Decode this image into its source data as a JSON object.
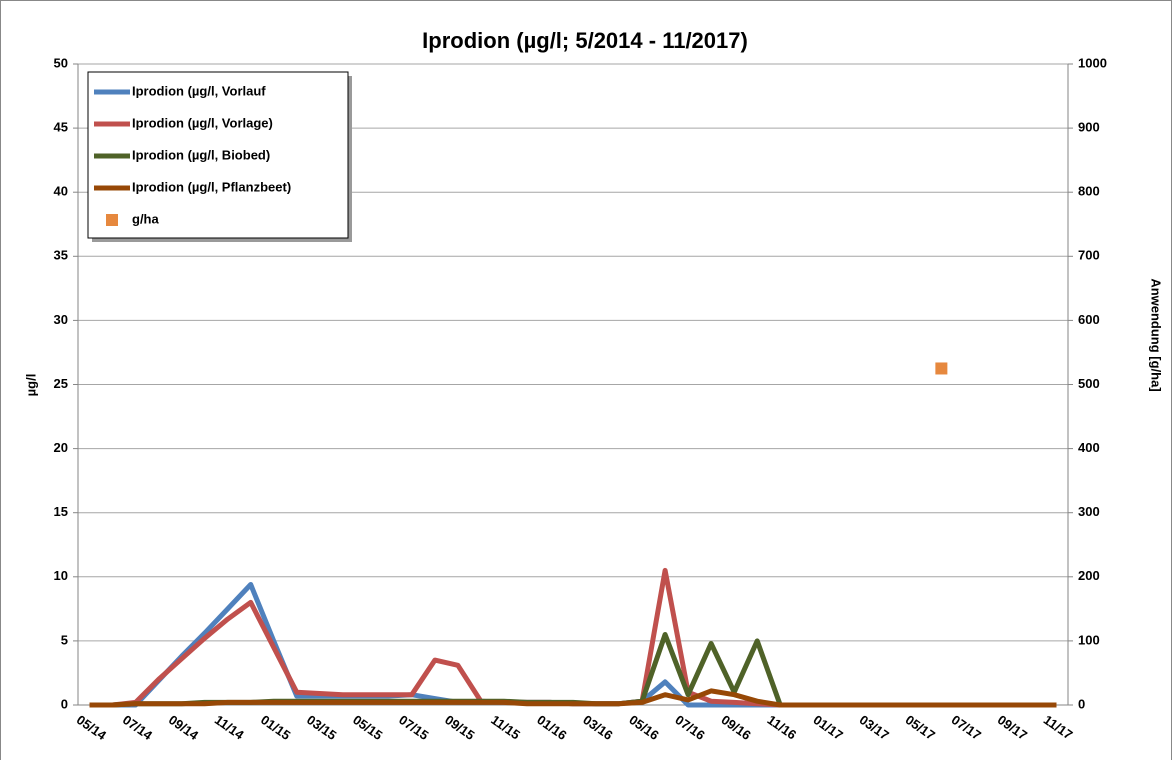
{
  "chart_data": {
    "type": "line",
    "title": "Iprodion (µg/l; 5/2014 - 11/2017)",
    "y_label": "µg/l",
    "y2_label": "Anwendung [g/ha]",
    "categories": [
      "05/14",
      null,
      "07/14",
      null,
      "09/14",
      null,
      "11/14",
      null,
      "01/15",
      null,
      "03/15",
      null,
      "05/15",
      null,
      "07/15",
      null,
      "09/15",
      null,
      "11/15",
      null,
      "01/16",
      null,
      "03/16",
      null,
      "05/16",
      null,
      "07/16",
      null,
      "09/16",
      null,
      "11/16",
      null,
      "01/17",
      null,
      "03/17",
      null,
      "05/17",
      null,
      "07/17",
      null,
      "09/17",
      null,
      "11/17"
    ],
    "ylim": [
      0,
      50
    ],
    "yticks": [
      0,
      5,
      10,
      15,
      20,
      25,
      30,
      35,
      40,
      45,
      50
    ],
    "y2lim": [
      0,
      1000
    ],
    "y2ticks": [
      0,
      100,
      200,
      300,
      400,
      500,
      600,
      700,
      800,
      900,
      1000
    ],
    "grid": true,
    "legend": "top-left",
    "series": [
      {
        "name": "Iprodion (µg/l, Vorlauf",
        "color": "#4f81bd",
        "values": [
          0,
          0,
          0,
          1.9,
          3.8,
          5.6,
          7.5,
          9.4,
          5,
          0.7,
          0.7,
          0.7,
          0.7,
          0.7,
          0.8,
          0.5,
          0.2,
          0.2,
          0.2,
          0.2,
          0.2,
          0.1,
          0.1,
          0.1,
          0.3,
          1.8,
          0,
          0,
          0,
          0,
          0,
          0,
          0,
          0,
          0,
          0,
          0,
          0,
          0,
          0,
          0,
          0,
          0
        ]
      },
      {
        "name": "Iprodion (µg/l, Vorlage)",
        "color": "#c0504d",
        "values": [
          0,
          0,
          0.2,
          2,
          3.6,
          5.2,
          6.7,
          8,
          4.5,
          1,
          0.9,
          0.8,
          0.8,
          0.8,
          0.8,
          3.5,
          3.1,
          0.3,
          0.2,
          0.2,
          0.2,
          0.1,
          0.1,
          0.1,
          0.3,
          10.5,
          1,
          0.3,
          0.2,
          0.1,
          0,
          0,
          0,
          0,
          0,
          0,
          0,
          0,
          0,
          0,
          0,
          0,
          0
        ]
      },
      {
        "name": "Iprodion (µg/l, Biobed)",
        "color": "#4f6228",
        "values": [
          0,
          0,
          0.1,
          0.1,
          0.1,
          0.2,
          0.2,
          0.2,
          0.3,
          0.3,
          0.3,
          0.3,
          0.3,
          0.3,
          0.3,
          0.3,
          0.3,
          0.3,
          0.3,
          0.2,
          0.2,
          0.2,
          0.1,
          0.1,
          0.3,
          5.5,
          0.8,
          4.8,
          1,
          5,
          0,
          0,
          0,
          0,
          0,
          0,
          0,
          0,
          0,
          0,
          0,
          0,
          0
        ]
      },
      {
        "name": "Iprodion (µg/l, Pflanzbeet)",
        "color": "#974806",
        "values": [
          0,
          0,
          0.1,
          0.1,
          0.1,
          0.1,
          0.2,
          0.2,
          0.2,
          0.2,
          0.2,
          0.2,
          0.2,
          0.2,
          0.2,
          0.2,
          0.2,
          0.2,
          0.2,
          0.1,
          0.1,
          0.1,
          0.1,
          0.1,
          0.2,
          0.8,
          0.4,
          1.1,
          0.8,
          0.3,
          0,
          0,
          0,
          0,
          0,
          0,
          0,
          0,
          0,
          0,
          0,
          0,
          0
        ]
      },
      {
        "name": "g/ha",
        "color": "#e6883e",
        "type": "scatter",
        "axis": "y2",
        "values": [
          null,
          null,
          null,
          null,
          null,
          null,
          null,
          null,
          null,
          null,
          null,
          null,
          null,
          null,
          null,
          null,
          null,
          null,
          null,
          null,
          null,
          null,
          null,
          null,
          null,
          null,
          null,
          null,
          null,
          null,
          null,
          null,
          null,
          null,
          null,
          null,
          null,
          525,
          null,
          null,
          null,
          null,
          null
        ]
      }
    ]
  }
}
